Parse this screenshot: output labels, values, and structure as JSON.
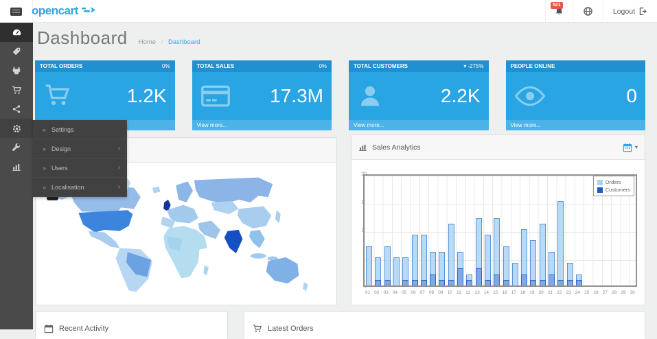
{
  "header": {
    "logo_text": "opencart",
    "notification_count": "521",
    "logout_label": "Logout"
  },
  "colors": {
    "brand_blue": "#2aa8e0",
    "tile_blue": "#2aa5e3",
    "badge_red": "#e2574c",
    "sidebar_dark": "#4a4a4b",
    "orders_bar": "#aad3f5",
    "customers_bar": "#1d59c8"
  },
  "glyphs": {
    "submenu_bullet": "»",
    "submenu_expand": "›",
    "caret_down": "▾"
  },
  "page": {
    "title": "Dashboard",
    "breadcrumb_home": "Home",
    "breadcrumb_sep": "/",
    "breadcrumb_current": "Dashboard"
  },
  "sidebar": {
    "items": [
      {
        "icon": "dashboard"
      },
      {
        "icon": "catalog-tag"
      },
      {
        "icon": "extensions-plug"
      },
      {
        "icon": "sales-cart"
      },
      {
        "icon": "marketing-share"
      },
      {
        "icon": "system-gear"
      },
      {
        "icon": "tools-wrench"
      },
      {
        "icon": "reports-chart"
      }
    ]
  },
  "submenu": {
    "items": [
      {
        "label": "Settings",
        "expandable": false
      },
      {
        "label": "Design",
        "expandable": true
      },
      {
        "label": "Users",
        "expandable": true
      },
      {
        "label": "Localisation",
        "expandable": true
      }
    ]
  },
  "tiles": [
    {
      "title": "TOTAL ORDERS",
      "change": "0%",
      "caret": "",
      "value": "1.2K",
      "footer": "View more...",
      "icon": "cart"
    },
    {
      "title": "TOTAL SALES",
      "change": "0%",
      "caret": "",
      "value": "17.3M",
      "footer": "View more...",
      "icon": "credit-card"
    },
    {
      "title": "TOTAL CUSTOMERS",
      "change": "-275%",
      "caret": "▾",
      "value": "2.2K",
      "footer": "View more...",
      "icon": "user"
    },
    {
      "title": "PEOPLE ONLINE",
      "change": "",
      "caret": "",
      "value": "0",
      "footer": "View more...",
      "icon": "eye"
    }
  ],
  "panels": {
    "sales_analytics": {
      "title": "Sales Analytics"
    },
    "recent_activity": {
      "title": "Recent Activity"
    },
    "latest_orders": {
      "title": "Latest Orders"
    }
  },
  "chart_data": {
    "type": "bar",
    "title": "Sales Analytics",
    "categories": [
      "01",
      "02",
      "03",
      "04",
      "05",
      "06",
      "07",
      "08",
      "09",
      "10",
      "11",
      "12",
      "13",
      "14",
      "15",
      "16",
      "17",
      "18",
      "19",
      "20",
      "21",
      "22",
      "23",
      "24",
      "25",
      "26",
      "27",
      "28",
      "29",
      "30"
    ],
    "series": [
      {
        "name": "Orders",
        "color": "#aad3f5",
        "values": [
          7,
          5,
          7,
          5,
          5,
          9,
          9,
          6,
          6,
          11,
          6,
          2,
          12,
          9,
          12,
          7,
          4,
          10,
          8,
          11,
          6,
          15,
          4,
          2,
          0,
          0,
          0,
          0,
          0,
          0
        ]
      },
      {
        "name": "Customers",
        "color": "#1d59c8",
        "values": [
          0,
          1,
          1,
          0,
          1,
          1,
          1,
          2,
          1,
          1,
          3,
          1,
          3,
          1,
          2,
          1,
          0,
          2,
          1,
          1,
          2,
          1,
          1,
          1,
          0,
          0,
          0,
          0,
          0,
          0
        ]
      }
    ],
    "xlabel": "",
    "ylabel": "",
    "ylim": [
      0,
      20
    ],
    "yticks": [
      0,
      5,
      10,
      15,
      20
    ],
    "grid": true,
    "legend_position": "top-right"
  }
}
